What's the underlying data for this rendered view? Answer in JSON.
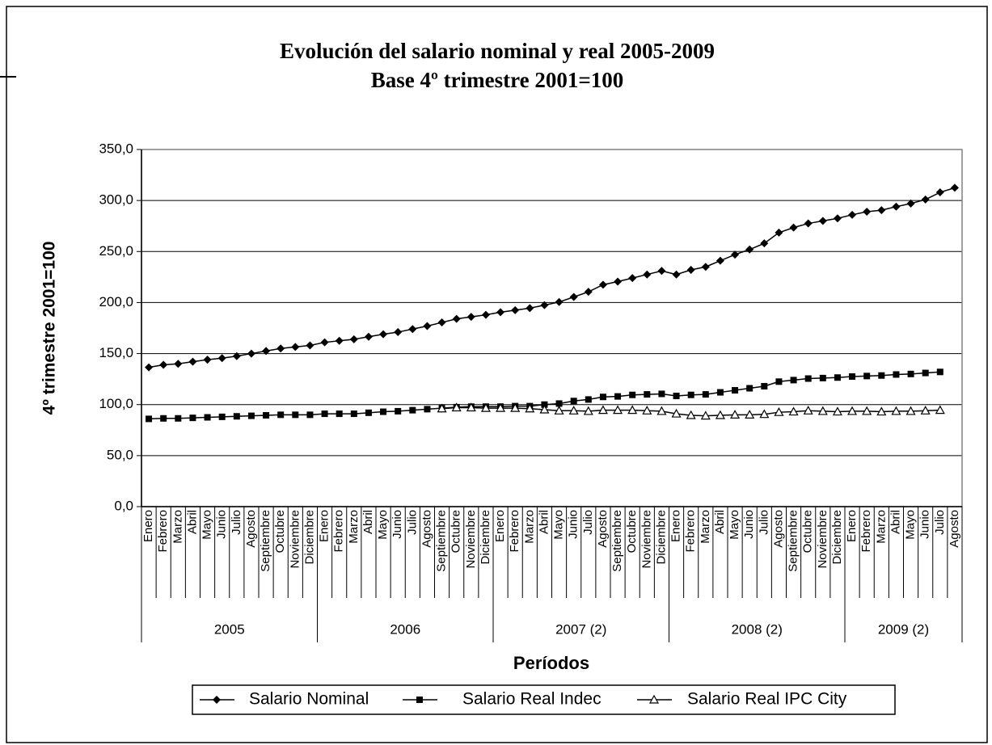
{
  "chart_data": {
    "type": "line",
    "title": "Evolución del salario nominal y real 2005-2009",
    "subtitle": "Base 4º trimestre 2001=100",
    "y_label": "4º trimestre 2001=100",
    "x_label": "Períodos",
    "groups": [
      {
        "label": "2005",
        "categories": [
          "Enero",
          "Febrero",
          "Marzo",
          "Abril",
          "Mayo",
          "Junio",
          "Julio",
          "Agosto",
          "Septiembre",
          "Octubre",
          "Noviembre",
          "Diciembre"
        ]
      },
      {
        "label": "2006",
        "categories": [
          "Enero",
          "Febrero",
          "Marzo",
          "Abril",
          "Mayo",
          "Junio",
          "Julio",
          "Agosto",
          "Septiembre",
          "Octubre",
          "Noviembre",
          "Diciembre"
        ]
      },
      {
        "label": "2007 (2)",
        "categories": [
          "Enero",
          "Febrero",
          "Marzo",
          "Abril",
          "Mayo",
          "Junio",
          "Julio",
          "Agosto",
          "Septiembre",
          "Octubre",
          "Noviembre",
          "Diciembre"
        ]
      },
      {
        "label": "2008 (2)",
        "categories": [
          "Enero",
          "Febrero",
          "Marzo",
          "Abril",
          "Mayo",
          "Junio",
          "Julio",
          "Agosto",
          "Septiembre",
          "Octubre",
          "Noviembre",
          "Diciembre"
        ]
      },
      {
        "label": "2009 (2)",
        "categories": [
          "Enero",
          "Febrero",
          "Marzo",
          "Abril",
          "Mayo",
          "Junio",
          "Julio",
          "Agosto"
        ]
      }
    ],
    "series": [
      {
        "name": "Salario Nominal",
        "color": "#000000",
        "marker": "diamond",
        "values": [
          136.5,
          139,
          140,
          142,
          144,
          145.5,
          147.5,
          150,
          152.5,
          155,
          156.5,
          158,
          161,
          162.5,
          164,
          166.5,
          169,
          171,
          174,
          177,
          180.5,
          184,
          186,
          188,
          190.5,
          192.5,
          194.5,
          197.5,
          200.5,
          205.5,
          210.5,
          217.5,
          220.5,
          224,
          227.5,
          231,
          227.5,
          232,
          235,
          241,
          247,
          252,
          258,
          268.5,
          273.5,
          277.5,
          280,
          282.5,
          286,
          289,
          290.5,
          294,
          297,
          301,
          308,
          312.5
        ]
      },
      {
        "name": "Salario Real Indec",
        "color": "#000000",
        "marker": "square",
        "values": [
          86,
          86.5,
          86.5,
          87,
          87.5,
          88,
          88.5,
          89,
          89.5,
          90,
          90,
          90,
          91,
          91,
          91,
          92,
          93,
          93.5,
          94.5,
          95.5,
          96.5,
          97.5,
          98,
          98,
          98,
          98.5,
          98.5,
          100,
          101,
          103.5,
          105,
          107.5,
          108,
          109.5,
          110,
          110.5,
          108.5,
          109.5,
          110,
          112,
          114,
          116,
          118,
          122.5,
          124,
          125.5,
          126,
          126.5,
          127.5,
          128,
          128.5,
          129.5,
          130,
          131,
          132,
          null
        ]
      },
      {
        "name": "Salario Real IPC City",
        "color": "#000000",
        "marker": "triangle",
        "values": [
          null,
          null,
          null,
          null,
          null,
          null,
          null,
          null,
          null,
          null,
          null,
          null,
          null,
          null,
          null,
          null,
          null,
          null,
          null,
          null,
          96,
          97,
          97,
          96.5,
          96.5,
          96.5,
          96,
          95,
          94,
          94,
          93.5,
          94.5,
          94.5,
          94.5,
          94,
          93.5,
          91,
          89.5,
          89,
          89.5,
          90,
          90,
          90.5,
          92.5,
          93,
          94,
          93.5,
          93,
          93.5,
          93.5,
          93,
          93.5,
          93.5,
          94,
          94.5,
          null
        ]
      }
    ],
    "ylim": [
      0,
      350
    ],
    "yticks": [
      {
        "value": 0,
        "label": "0,0"
      },
      {
        "value": 50,
        "label": "50,0"
      },
      {
        "value": 100,
        "label": "100,0"
      },
      {
        "value": 150,
        "label": "150,0"
      },
      {
        "value": 200,
        "label": "200,0"
      },
      {
        "value": 250,
        "label": "250,0"
      },
      {
        "value": 300,
        "label": "300,0"
      },
      {
        "value": 350,
        "label": "350,0"
      }
    ],
    "grid": true,
    "legend": "bottom"
  }
}
